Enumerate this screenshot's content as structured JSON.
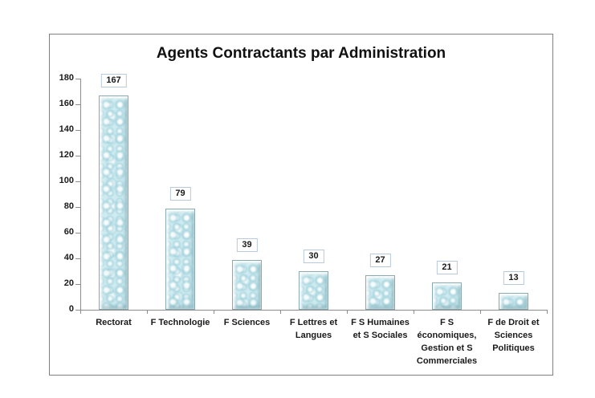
{
  "chart_data": {
    "type": "bar",
    "title": "Agents Contractants par Administration",
    "categories": [
      "Rectorat",
      "F Technologie",
      "F Sciences",
      "F Lettres et Langues",
      "F S Humaines et S Sociales",
      "F S économiques, Gestion et S Commerciales",
      "F de Droit et Sciences Politiques"
    ],
    "category_label_lines": [
      [
        "Rectorat"
      ],
      [
        "F Technologie"
      ],
      [
        "F Sciences"
      ],
      [
        "F Lettres et",
        "Langues"
      ],
      [
        "F S Humaines",
        "et S Sociales"
      ],
      [
        "F S",
        "économiques,",
        "Gestion et S",
        "Commerciales"
      ],
      [
        "F de Droit et",
        "Sciences",
        "Politiques"
      ]
    ],
    "values": [
      167,
      79,
      39,
      30,
      27,
      21,
      13
    ],
    "value_labels": [
      "167",
      "79",
      "39",
      "30",
      "27",
      "21",
      "13"
    ],
    "xlabel": "",
    "ylabel": "",
    "ylim": [
      0,
      180
    ],
    "yticks": [
      0,
      20,
      40,
      60,
      80,
      100,
      120,
      140,
      160,
      180
    ],
    "grid": false,
    "legend": false,
    "value_labels_shown": true,
    "colors": {
      "bar_fill": "#cdebf0",
      "bar_border": "#8aa9b0",
      "axis": "#8c8c8c",
      "frame_border": "#7f7f7f",
      "text": "#1a1a1a",
      "value_box_border": "#b7c9dd",
      "background": "#ffffff"
    }
  }
}
